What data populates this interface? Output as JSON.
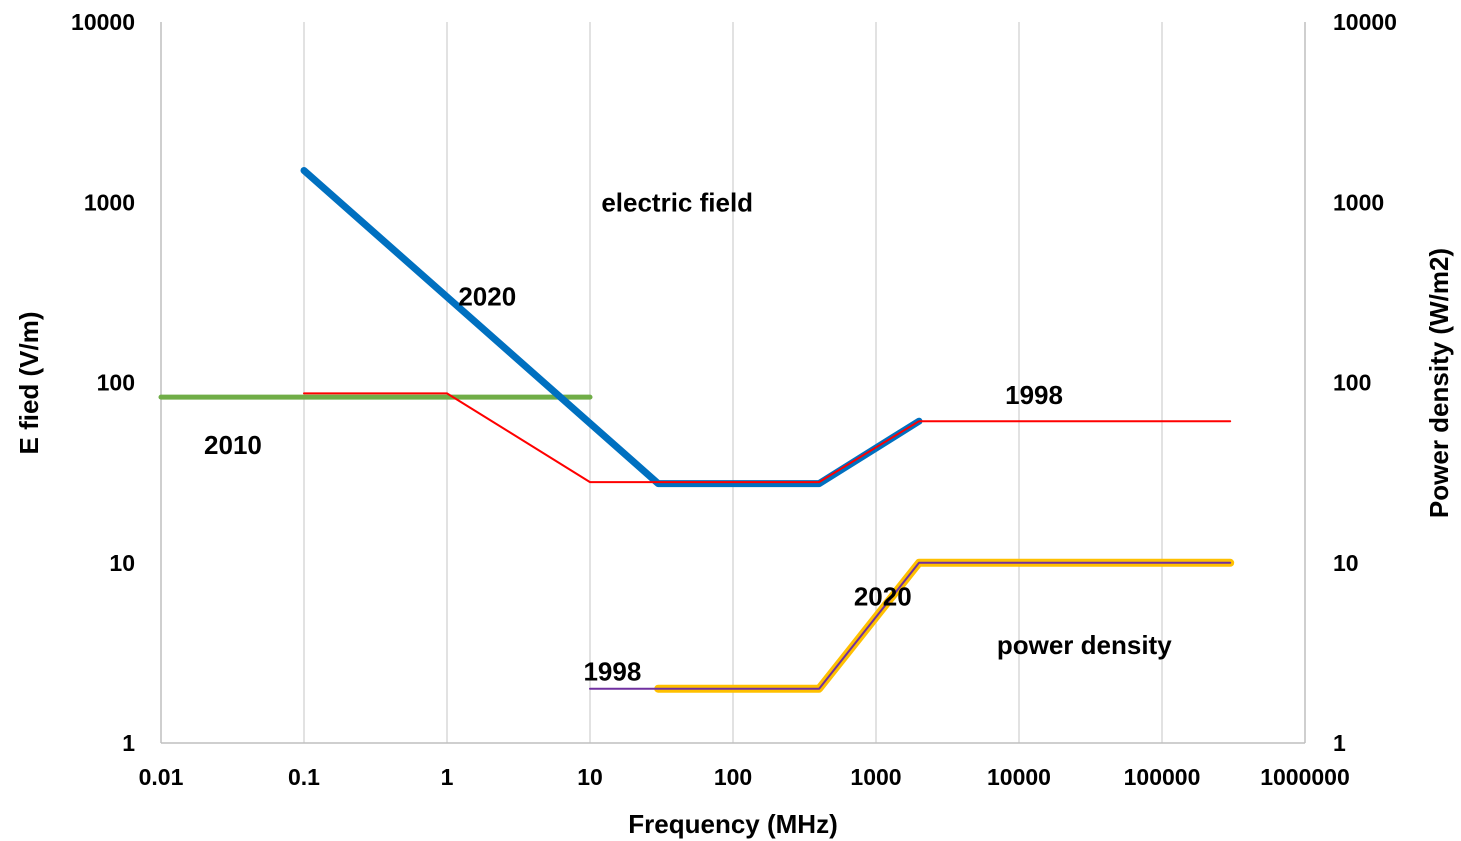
{
  "chart_data": {
    "type": "line",
    "title": "",
    "xlabel": "Frequency (MHz)",
    "ylabel": "E fied (V/m)",
    "y2label": "Power density (W/m2)",
    "xscale": "log",
    "yscale": "log",
    "xlim": [
      0.01,
      1000000
    ],
    "ylim": [
      1,
      10000
    ],
    "y2lim": [
      1,
      10000
    ],
    "grid": "vertical",
    "legend": "none",
    "x_ticks": [
      "0.01",
      "0.1",
      "1",
      "10",
      "100",
      "1000",
      "10000",
      "100000",
      "1000000"
    ],
    "y_ticks": [
      "1",
      "10",
      "100",
      "1000",
      "10000"
    ],
    "y2_ticks": [
      "1",
      "10",
      "100",
      "1000",
      "10000"
    ],
    "series": [
      {
        "axis": "left",
        "color": "#70AD47",
        "x": [
          0.01,
          10
        ],
        "y": [
          83,
          83
        ]
      },
      {
        "axis": "left",
        "color": "#0070C0",
        "x": [
          0.1,
          30,
          400,
          2000
        ],
        "y": [
          1500,
          27.5,
          27.5,
          61
        ]
      },
      {
        "axis": "left",
        "color": "#FF0000",
        "x": [
          0.1,
          1,
          10,
          400,
          2000,
          300000
        ],
        "y": [
          87,
          87,
          28,
          28,
          61,
          61
        ]
      },
      {
        "axis": "right",
        "color": "#FFC000",
        "x": [
          30,
          400,
          2000,
          300000
        ],
        "y": [
          2,
          2,
          10,
          10
        ]
      },
      {
        "axis": "right",
        "color": "#7030A0",
        "x": [
          10,
          400,
          2000,
          300000
        ],
        "y": [
          2,
          2,
          10,
          10
        ]
      }
    ],
    "annotations": [
      {
        "text": "electric field",
        "x": 12,
        "y": 1000
      },
      {
        "text": "2020",
        "x": 1.2,
        "y": 300
      },
      {
        "text": "2010",
        "x": 0.02,
        "y": 45
      },
      {
        "text": "1998",
        "x": 8000,
        "y": 85
      },
      {
        "text": "2020",
        "x": 700,
        "y": 6.5
      },
      {
        "text": "power density",
        "x": 7000,
        "y": 3.5
      },
      {
        "text": "1998",
        "x": 9,
        "y": 2.5
      }
    ]
  }
}
